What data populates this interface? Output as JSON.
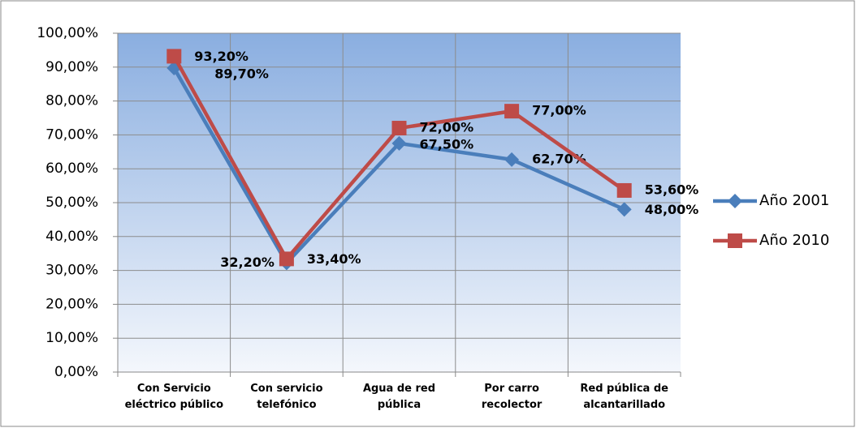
{
  "chart_data": {
    "type": "line",
    "categories": [
      "Con Servicio eléctrico público",
      "Con servicio telefónico",
      "Agua de red pública",
      "Por carro recolector",
      "Red pública de alcantarillado"
    ],
    "series": [
      {
        "name": "Año 2001",
        "color": "#4a7ebb",
        "marker": "diamond",
        "values": [
          89.7,
          32.2,
          67.5,
          62.7,
          48.0
        ],
        "value_labels": [
          "89,70%",
          "32,20%",
          "67,50%",
          "62,70%",
          "48,00%"
        ]
      },
      {
        "name": "Año 2010",
        "color": "#be4b48",
        "marker": "square",
        "values": [
          93.2,
          33.4,
          72.0,
          77.0,
          53.6
        ],
        "value_labels": [
          "93,20%",
          "33,40%",
          "72,00%",
          "77,00%",
          "53,60%"
        ]
      }
    ],
    "ylim": [
      0,
      100
    ],
    "yticks": [
      {
        "value": 0,
        "label": "0,00%"
      },
      {
        "value": 10,
        "label": "10,00%"
      },
      {
        "value": 20,
        "label": "20,00%"
      },
      {
        "value": 30,
        "label": "30,00%"
      },
      {
        "value": 40,
        "label": "40,00%"
      },
      {
        "value": 50,
        "label": "50,00%"
      },
      {
        "value": 60,
        "label": "60,00%"
      },
      {
        "value": 70,
        "label": "70,00%"
      },
      {
        "value": 80,
        "label": "80,00%"
      },
      {
        "value": 90,
        "label": "90,00%"
      },
      {
        "value": 100,
        "label": "100,00%"
      }
    ],
    "grid": true,
    "legend": "right"
  }
}
